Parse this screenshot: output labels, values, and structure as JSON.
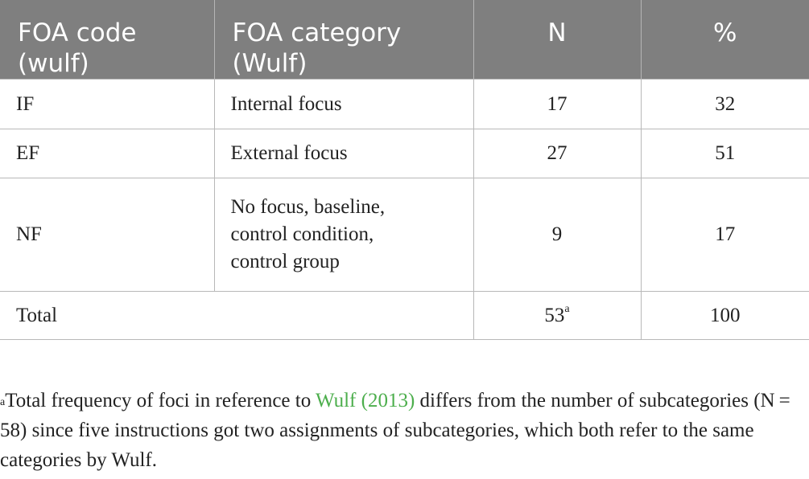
{
  "table": {
    "headers": [
      "FOA code (wulf)",
      "FOA category (Wulf)",
      "N",
      "%"
    ],
    "rows": [
      {
        "code": "IF",
        "category": "Internal focus",
        "n": "17",
        "pct": "32"
      },
      {
        "code": "EF",
        "category": "External focus",
        "n": "27",
        "pct": "51"
      },
      {
        "code": "NF",
        "category_lines": [
          "No focus, baseline,",
          "control condition,",
          "control group"
        ],
        "n": "9",
        "pct": "17"
      }
    ],
    "total": {
      "label": "Total",
      "n": "53",
      "n_marker": "a",
      "pct": "100"
    }
  },
  "footnote": {
    "marker": "a",
    "text_before": "Total frequency of foci in reference to ",
    "link_text": "Wulf (2013)",
    "text_after": " differs from the number of subcategories (N = 58) since five instructions got two assignments of subcategories, which both refer to the same categories by Wulf."
  },
  "colors": {
    "header_bg": "#7f7f7f",
    "header_text": "#ffffff",
    "link": "#4cae4c",
    "border": "#b8b8b8"
  }
}
